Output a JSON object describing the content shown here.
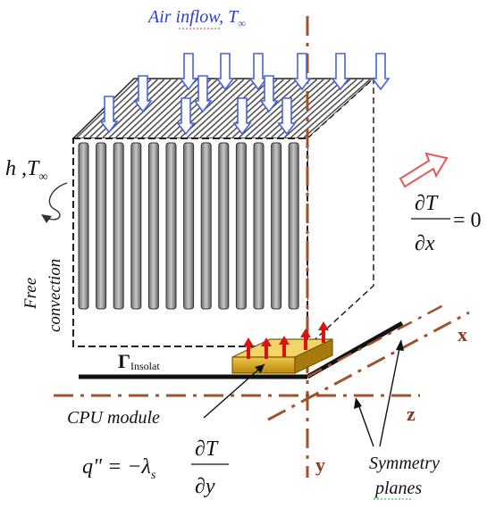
{
  "labels": {
    "air_inflow": "Air inflow, T",
    "air_inflow_sub": "∞",
    "h_tinf": "h ,T",
    "h_tinf_sub": "∞",
    "free": "Free",
    "convection": "convection",
    "gamma": "Γ",
    "gamma_sub": "Insolat",
    "cpu_module": "CPU module",
    "q_lhs": "q\" = −λ",
    "q_lhs_sub": "s",
    "dT": "∂T",
    "dy": "∂y",
    "dx": "∂x",
    "eq_zero": "= 0",
    "symmetry": "Symmetry",
    "planes": "planes",
    "axis_x": "x",
    "axis_y": "y",
    "axis_z": "z"
  },
  "colors": {
    "air_arrows": "#4a63d8",
    "air_text": "#2a3fd0",
    "symmetry_lines": "#a0522d",
    "axis_labels": "#8b3a1a",
    "heat_arrows": "#dd1111",
    "outflow_arrow": "#e05a5a",
    "cpu_fill": "#d4a52a"
  }
}
